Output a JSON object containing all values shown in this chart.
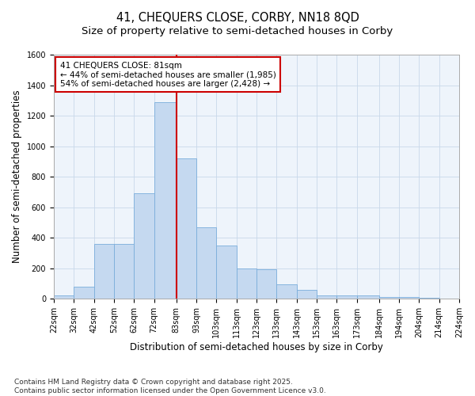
{
  "title_line1": "41, CHEQUERS CLOSE, CORBY, NN18 8QD",
  "title_line2": "Size of property relative to semi-detached houses in Corby",
  "xlabel": "Distribution of semi-detached houses by size in Corby",
  "ylabel": "Number of semi-detached properties",
  "bar_color": "#c5d9f0",
  "bar_edge_color": "#7aaddb",
  "grid_color": "#c8d8ea",
  "background_color": "#eef4fb",
  "vline_color": "#cc0000",
  "vline_x": 83,
  "annotation_text": "41 CHEQUERS CLOSE: 81sqm\n← 44% of semi-detached houses are smaller (1,985)\n54% of semi-detached houses are larger (2,428) →",
  "annotation_box_edge": "#cc0000",
  "bin_edges": [
    22,
    32,
    42,
    52,
    62,
    72,
    83,
    93,
    103,
    113,
    123,
    133,
    143,
    153,
    163,
    173,
    184,
    194,
    204,
    214,
    224
  ],
  "bar_heights": [
    25,
    80,
    360,
    360,
    690,
    1290,
    920,
    470,
    350,
    200,
    195,
    95,
    60,
    25,
    20,
    20,
    10,
    10,
    5,
    3
  ],
  "ylim": [
    0,
    1600
  ],
  "yticks": [
    0,
    200,
    400,
    600,
    800,
    1000,
    1200,
    1400,
    1600
  ],
  "xtick_labels": [
    "22sqm",
    "32sqm",
    "42sqm",
    "52sqm",
    "62sqm",
    "72sqm",
    "83sqm",
    "93sqm",
    "103sqm",
    "113sqm",
    "123sqm",
    "133sqm",
    "143sqm",
    "153sqm",
    "163sqm",
    "173sqm",
    "184sqm",
    "194sqm",
    "204sqm",
    "214sqm",
    "224sqm"
  ],
  "footnote": "Contains HM Land Registry data © Crown copyright and database right 2025.\nContains public sector information licensed under the Open Government Licence v3.0.",
  "title_fontsize": 10.5,
  "subtitle_fontsize": 9.5,
  "axis_label_fontsize": 8.5,
  "tick_fontsize": 7,
  "annotation_fontsize": 7.5,
  "footnote_fontsize": 6.5
}
